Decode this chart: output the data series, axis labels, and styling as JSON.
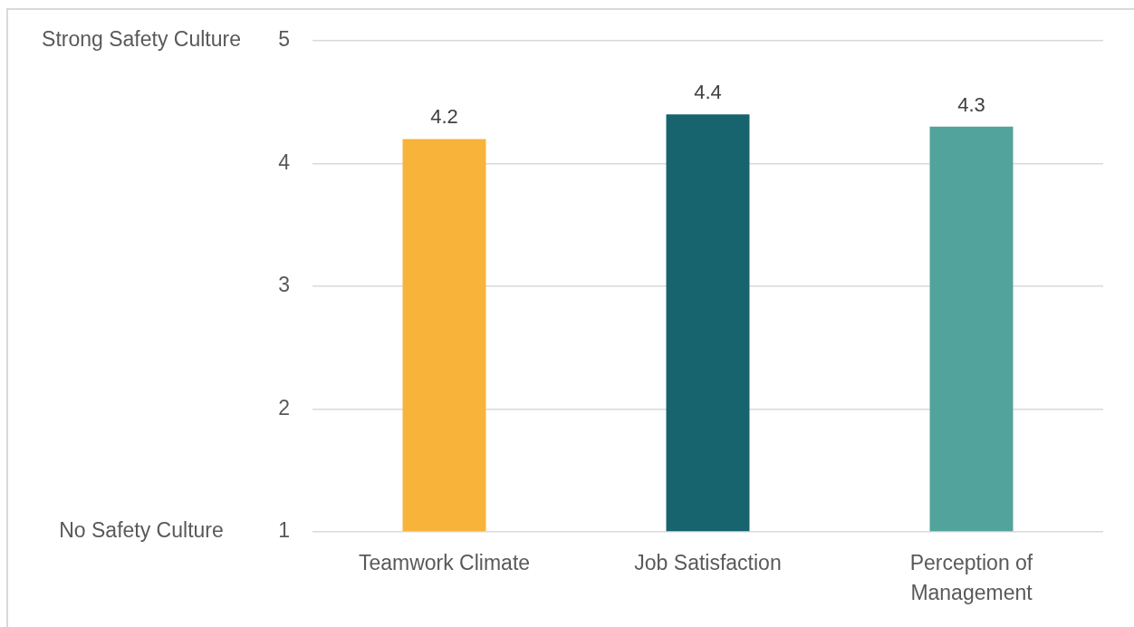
{
  "chart_data": {
    "type": "bar",
    "categories": [
      "Teamwork Climate",
      "Job Satisfaction",
      "Perception of Management"
    ],
    "values": [
      4.2,
      4.4,
      4.3
    ],
    "colors": [
      "#f8b33a",
      "#17636e",
      "#52a39b"
    ],
    "data_labels": true,
    "ylim": [
      1,
      5
    ],
    "yticks": [
      1,
      2,
      3,
      4,
      5
    ],
    "annotations": [
      "Strong Safety Culture",
      "No Safety Culture"
    ],
    "grid": "y"
  }
}
